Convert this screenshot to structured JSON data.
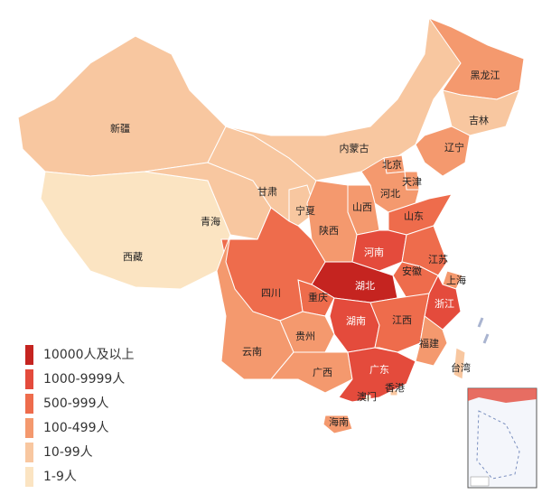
{
  "legend": [
    {
      "label": "10000人及以上",
      "color": "#c52420"
    },
    {
      "label": "1000-9999人",
      "color": "#e44b3c"
    },
    {
      "label": "500-999人",
      "color": "#ee6c4c"
    },
    {
      "label": "100-499人",
      "color": "#f4996e"
    },
    {
      "label": "10-99人",
      "color": "#f8c7a0"
    },
    {
      "label": "1-9人",
      "color": "#fbe4c2"
    }
  ],
  "provinces": [
    {
      "name": "新疆",
      "color": "#f8c7a0"
    },
    {
      "name": "西藏",
      "color": "#fbe4c2"
    },
    {
      "name": "青海",
      "color": "#f8c7a0"
    },
    {
      "name": "甘肃",
      "color": "#f8c7a0"
    },
    {
      "name": "宁夏",
      "color": "#f8c7a0"
    },
    {
      "name": "内蒙古",
      "color": "#f8c7a0"
    },
    {
      "name": "黑龙江",
      "color": "#f4996e"
    },
    {
      "name": "吉林",
      "color": "#f8c7a0"
    },
    {
      "name": "辽宁",
      "color": "#f4996e"
    },
    {
      "name": "北京",
      "color": "#f4996e"
    },
    {
      "name": "天津",
      "color": "#f4996e"
    },
    {
      "name": "河北",
      "color": "#f4996e"
    },
    {
      "name": "山西",
      "color": "#f4996e"
    },
    {
      "name": "山东",
      "color": "#ee6c4c"
    },
    {
      "name": "陕西",
      "color": "#f4996e"
    },
    {
      "name": "河南",
      "color": "#e44b3c"
    },
    {
      "name": "江苏",
      "color": "#ee6c4c"
    },
    {
      "name": "安徽",
      "color": "#ee6c4c"
    },
    {
      "name": "上海",
      "color": "#f4996e"
    },
    {
      "name": "湖北",
      "color": "#c52420"
    },
    {
      "name": "重庆",
      "color": "#ee6c4c"
    },
    {
      "name": "四川",
      "color": "#ee6c4c"
    },
    {
      "name": "浙江",
      "color": "#e44b3c"
    },
    {
      "name": "湖南",
      "color": "#e44b3c"
    },
    {
      "name": "江西",
      "color": "#ee6c4c"
    },
    {
      "name": "贵州",
      "color": "#f4996e"
    },
    {
      "name": "云南",
      "color": "#f4996e"
    },
    {
      "name": "福建",
      "color": "#f4996e"
    },
    {
      "name": "台湾",
      "color": "#f8c7a0"
    },
    {
      "name": "广西",
      "color": "#f4996e"
    },
    {
      "name": "广东",
      "color": "#e44b3c"
    },
    {
      "name": "香港",
      "color": "#f8c7a0"
    },
    {
      "name": "澳门",
      "color": "#fbe4c2"
    },
    {
      "name": "海南",
      "color": "#f4996e"
    }
  ]
}
